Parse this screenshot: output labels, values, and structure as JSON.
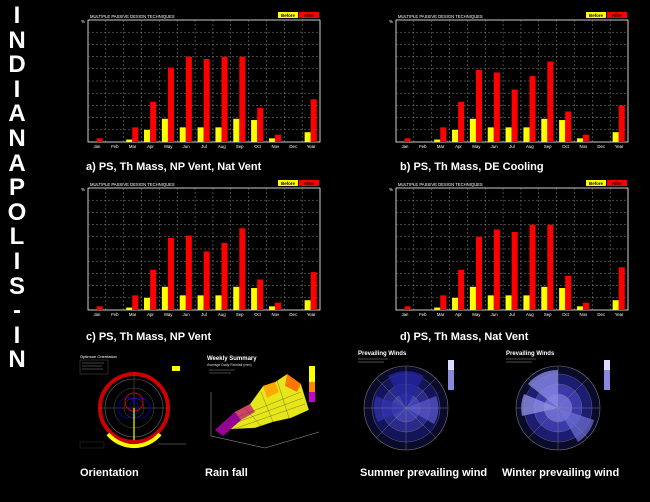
{
  "side_title_letters": [
    "I",
    "N",
    "D",
    "I",
    "A",
    "N",
    "A",
    "P",
    "O",
    "L",
    "I",
    "S",
    "-",
    "I",
    "N"
  ],
  "colors": {
    "before": "#ffff00",
    "after": "#ff0000",
    "grid": "#8a8a8a",
    "axis": "#ffffff",
    "plot_bg": "#000000"
  },
  "chart_data": [
    {
      "type": "bar",
      "header": "MULTIPLE PASSIVE DESIGN TECHNIQUES",
      "caption": "a) PS, Th Mass, NP Vent, Nat Vent",
      "categories": [
        "Jan",
        "Feb",
        "Mar",
        "Apr",
        "May",
        "Jun",
        "Jul",
        "Aug",
        "Sep",
        "Oct",
        "Nov",
        "Dec",
        "Year"
      ],
      "ylabel": "%",
      "yticks": [
        0,
        10,
        20,
        30,
        40,
        50,
        60,
        70,
        80,
        90,
        100
      ],
      "ylim": [
        0,
        100
      ],
      "grid": true,
      "legend_position": "top-right",
      "series": [
        {
          "name": "Before",
          "color": "#ffff00",
          "values": [
            0,
            0,
            2,
            10,
            19,
            12,
            12,
            12,
            19,
            18,
            3,
            0,
            8
          ]
        },
        {
          "name": "After",
          "color": "#ff0000",
          "values": [
            3,
            0,
            12,
            33,
            61,
            70,
            68,
            70,
            70,
            28,
            6,
            0,
            35
          ]
        }
      ]
    },
    {
      "type": "bar",
      "header": "MULTIPLE PASSIVE DESIGN TECHNIQUES",
      "caption": "b) PS, Th Mass, DE Cooling",
      "categories": [
        "Jan",
        "Feb",
        "Mar",
        "Apr",
        "May",
        "Jun",
        "Jul",
        "Aug",
        "Sep",
        "Oct",
        "Nov",
        "Dec",
        "Year"
      ],
      "ylabel": "%",
      "yticks": [
        0,
        10,
        20,
        30,
        40,
        50,
        60,
        70,
        80,
        90,
        100
      ],
      "ylim": [
        0,
        100
      ],
      "grid": true,
      "legend_position": "top-right",
      "series": [
        {
          "name": "Before",
          "color": "#ffff00",
          "values": [
            0,
            0,
            2,
            10,
            19,
            12,
            12,
            12,
            19,
            18,
            3,
            0,
            8
          ]
        },
        {
          "name": "After",
          "color": "#ff0000",
          "values": [
            3,
            0,
            12,
            33,
            59,
            57,
            43,
            54,
            66,
            25,
            6,
            0,
            30
          ]
        }
      ]
    },
    {
      "type": "bar",
      "header": "MULTIPLE PASSIVE DESIGN TECHNIQUES",
      "caption": "c) PS, Th Mass, NP Vent",
      "categories": [
        "Jan",
        "Feb",
        "Mar",
        "Apr",
        "May",
        "Jun",
        "Jul",
        "Aug",
        "Sep",
        "Oct",
        "Nov",
        "Dec",
        "Year"
      ],
      "ylabel": "%",
      "yticks": [
        0,
        10,
        20,
        30,
        40,
        50,
        60,
        70,
        80,
        90,
        100
      ],
      "ylim": [
        0,
        100
      ],
      "grid": true,
      "legend_position": "top-right",
      "series": [
        {
          "name": "Before",
          "color": "#ffff00",
          "values": [
            0,
            0,
            2,
            10,
            19,
            12,
            12,
            12,
            19,
            18,
            3,
            0,
            8
          ]
        },
        {
          "name": "After",
          "color": "#ff0000",
          "values": [
            3,
            0,
            12,
            33,
            59,
            61,
            48,
            55,
            67,
            25,
            6,
            0,
            31
          ]
        }
      ]
    },
    {
      "type": "bar",
      "header": "MULTIPLE PASSIVE DESIGN TECHNIQUES",
      "caption": "d) PS, Th Mass, Nat Vent",
      "categories": [
        "Jan",
        "Feb",
        "Mar",
        "Apr",
        "May",
        "Jun",
        "Jul",
        "Aug",
        "Sep",
        "Oct",
        "Nov",
        "Dec",
        "Year"
      ],
      "ylabel": "%",
      "yticks": [
        0,
        10,
        20,
        30,
        40,
        50,
        60,
        70,
        80,
        90,
        100
      ],
      "ylim": [
        0,
        100
      ],
      "grid": true,
      "legend_position": "top-right",
      "series": [
        {
          "name": "Before",
          "color": "#ffff00",
          "values": [
            0,
            0,
            2,
            10,
            19,
            12,
            12,
            12,
            19,
            18,
            3,
            0,
            8
          ]
        },
        {
          "name": "After",
          "color": "#ff0000",
          "values": [
            3,
            0,
            12,
            33,
            60,
            66,
            64,
            70,
            70,
            28,
            6,
            0,
            35
          ]
        }
      ]
    }
  ],
  "thumbnails": [
    {
      "caption": "Orientation",
      "inner_title": "Optimum Orientation"
    },
    {
      "caption": "Rain fall",
      "inner_title": "Weekly Summary",
      "inner_subtitle": "Average Daily Rainfall (mm)"
    },
    {
      "caption": "Summer prevailing wind",
      "inner_title": "Prevailing Winds"
    },
    {
      "caption": "Winter prevailing wind",
      "inner_title": "Prevailing Winds"
    }
  ]
}
